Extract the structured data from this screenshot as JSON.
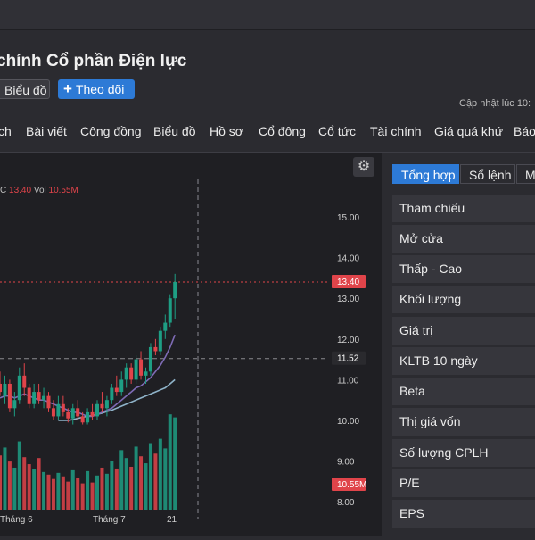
{
  "page": {
    "title": "chính Cổ phần Điện lực",
    "chart_button": "Biểu đồ",
    "follow_button": "Theo dõi",
    "follow_icon": "+",
    "updated_label": "Cập nhật lúc  10:"
  },
  "tabs": [
    "ch",
    "Bài viết",
    "Cộng đồng",
    "Biểu đồ",
    "Hồ sơ",
    "Cổ đông",
    "Cổ tức",
    "Tài chính",
    "Giá quá khứ",
    "Báo"
  ],
  "chart_legend": {
    "close_label": "C",
    "close_value": "13.40",
    "vol_label": "Vol",
    "vol_value": "10.55M"
  },
  "chart_data": {
    "type": "candlestick",
    "price_axis_ticks": [
      "15.00",
      "14.00",
      "13.00",
      "12.00",
      "11.00",
      "10.00",
      "9.00",
      "8.00"
    ],
    "ylim": [
      8,
      15.5
    ],
    "x_labels": [
      "Tháng 6",
      "Tháng 7",
      "21"
    ],
    "last_price_tag": "13.40",
    "crosshair_price_tag": "11.52",
    "volume_tag": "10.55M",
    "colors": {
      "up": "#1e9e84",
      "down": "#e0444a",
      "ma_short": "#7e6bb5",
      "ma_long": "#8fb3c9",
      "background": "#1f1f23"
    },
    "candles": [
      {
        "o": 10.9,
        "h": 11.2,
        "l": 10.6,
        "c": 10.7
      },
      {
        "o": 10.6,
        "h": 11.1,
        "l": 10.4,
        "c": 10.9
      },
      {
        "o": 10.9,
        "h": 11.0,
        "l": 10.2,
        "c": 10.3
      },
      {
        "o": 10.3,
        "h": 10.7,
        "l": 10.1,
        "c": 10.5
      },
      {
        "o": 10.5,
        "h": 11.3,
        "l": 10.4,
        "c": 11.1
      },
      {
        "o": 11.1,
        "h": 11.4,
        "l": 10.6,
        "c": 10.8
      },
      {
        "o": 10.8,
        "h": 10.9,
        "l": 10.3,
        "c": 10.4
      },
      {
        "o": 10.4,
        "h": 10.9,
        "l": 10.3,
        "c": 10.7
      },
      {
        "o": 10.7,
        "h": 10.9,
        "l": 10.4,
        "c": 10.5
      },
      {
        "o": 10.5,
        "h": 10.8,
        "l": 10.3,
        "c": 10.6
      },
      {
        "o": 10.6,
        "h": 10.7,
        "l": 10.2,
        "c": 10.3
      },
      {
        "o": 10.3,
        "h": 10.5,
        "l": 10.0,
        "c": 10.1
      },
      {
        "o": 10.1,
        "h": 10.6,
        "l": 10.0,
        "c": 10.4
      },
      {
        "o": 10.4,
        "h": 10.6,
        "l": 10.1,
        "c": 10.2
      },
      {
        "o": 10.2,
        "h": 10.3,
        "l": 9.95,
        "c": 10.05
      },
      {
        "o": 10.05,
        "h": 10.4,
        "l": 9.9,
        "c": 10.3
      },
      {
        "o": 10.3,
        "h": 10.5,
        "l": 10.0,
        "c": 10.1
      },
      {
        "o": 10.1,
        "h": 10.2,
        "l": 9.9,
        "c": 9.95
      },
      {
        "o": 9.95,
        "h": 10.3,
        "l": 9.9,
        "c": 10.2
      },
      {
        "o": 10.2,
        "h": 10.4,
        "l": 10.0,
        "c": 10.1
      },
      {
        "o": 10.1,
        "h": 10.5,
        "l": 10.0,
        "c": 10.4
      },
      {
        "o": 10.4,
        "h": 10.7,
        "l": 10.2,
        "c": 10.3
      },
      {
        "o": 10.3,
        "h": 10.6,
        "l": 10.1,
        "c": 10.5
      },
      {
        "o": 10.5,
        "h": 10.9,
        "l": 10.4,
        "c": 10.8
      },
      {
        "o": 10.8,
        "h": 11.1,
        "l": 10.6,
        "c": 10.7
      },
      {
        "o": 10.7,
        "h": 11.2,
        "l": 10.6,
        "c": 11.0
      },
      {
        "o": 11.0,
        "h": 11.4,
        "l": 10.8,
        "c": 11.3
      },
      {
        "o": 11.3,
        "h": 11.4,
        "l": 10.9,
        "c": 11.0
      },
      {
        "o": 11.0,
        "h": 11.6,
        "l": 10.9,
        "c": 11.5
      },
      {
        "o": 11.5,
        "h": 11.7,
        "l": 11.0,
        "c": 11.1
      },
      {
        "o": 11.1,
        "h": 11.3,
        "l": 10.9,
        "c": 11.2
      },
      {
        "o": 11.2,
        "h": 11.9,
        "l": 11.1,
        "c": 11.8
      },
      {
        "o": 11.8,
        "h": 12.0,
        "l": 11.6,
        "c": 11.7
      },
      {
        "o": 11.7,
        "h": 12.3,
        "l": 11.6,
        "c": 12.2
      },
      {
        "o": 12.2,
        "h": 12.6,
        "l": 12.0,
        "c": 12.4
      },
      {
        "o": 12.4,
        "h": 13.1,
        "l": 12.3,
        "c": 13.0
      },
      {
        "o": 13.0,
        "h": 13.6,
        "l": 12.5,
        "c": 13.4
      }
    ],
    "ma_short": [
      10.55,
      10.6,
      10.6,
      10.55,
      10.6,
      10.65,
      10.6,
      10.55,
      10.5,
      10.5,
      10.45,
      10.4,
      10.35,
      10.3,
      10.25,
      10.2,
      10.2,
      10.15,
      10.1,
      10.1,
      10.15,
      10.2,
      10.25,
      10.3,
      10.4,
      10.5,
      10.6,
      10.7,
      10.8,
      10.85,
      10.95,
      11.05,
      11.2,
      11.35,
      11.55,
      11.8,
      12.1
    ],
    "ma_long": [
      null,
      null,
      null,
      null,
      null,
      null,
      null,
      null,
      null,
      null,
      null,
      null,
      10.0,
      10.0,
      10.0,
      10.02,
      10.05,
      10.08,
      10.1,
      10.12,
      10.15,
      10.18,
      10.22,
      10.25,
      10.3,
      10.35,
      10.4,
      10.45,
      10.5,
      10.55,
      10.6,
      10.65,
      10.7,
      10.75,
      10.8,
      10.9,
      11.0
    ],
    "volume_m": [
      6.2,
      7.1,
      5.5,
      4.8,
      7.8,
      6.0,
      5.2,
      4.6,
      5.9,
      4.3,
      4.0,
      3.5,
      4.2,
      3.8,
      3.2,
      4.5,
      3.6,
      3.0,
      4.4,
      3.1,
      3.9,
      4.8,
      4.1,
      5.6,
      4.7,
      6.8,
      5.9,
      4.9,
      7.2,
      6.1,
      5.3,
      7.6,
      6.4,
      8.1,
      7.0,
      10.9,
      10.55
    ]
  },
  "panel": {
    "tabs": [
      "Tổng hợp",
      "Sổ lệnh",
      "Mu"
    ],
    "rows": [
      "Tham chiếu",
      "Mở cửa",
      "Thấp - Cao",
      "Khối lượng",
      "Giá trị",
      "KLTB 10 ngày",
      "Beta",
      "Thị giá vốn",
      "Số lượng CPLH",
      "P/E",
      "EPS"
    ]
  }
}
